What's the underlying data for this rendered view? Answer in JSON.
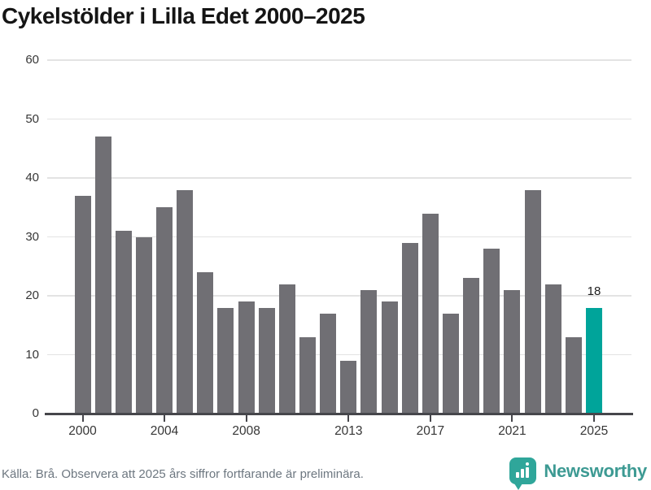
{
  "title": "Cykelstölder i Lilla Edet 2000–2025",
  "source_note": "Källa: Brå. Observera att 2025 års siffror fortfarande är preliminära.",
  "branding": {
    "name": "Newsworthy",
    "icon": "bar-chart-speech-bubble-icon"
  },
  "colors": {
    "bar": "#706f74",
    "highlight": "#00a49a",
    "grid": "#e3e3e3",
    "axis": "#46464b",
    "text": "#363636",
    "muted": "#6d7780",
    "brand": "#3d9a93"
  },
  "chart_data": {
    "type": "bar",
    "title": "Cykelstölder i Lilla Edet 2000–2025",
    "categories": [
      "2000",
      "2001",
      "2002",
      "2003",
      "2004",
      "2005",
      "2006",
      "2007",
      "2008",
      "2009",
      "2010",
      "2011",
      "2012",
      "2013",
      "2014",
      "2015",
      "2016",
      "2017",
      "2018",
      "2019",
      "2020",
      "2021",
      "2022",
      "2023",
      "2024",
      "2025"
    ],
    "values": [
      37,
      47,
      31,
      30,
      35,
      38,
      24,
      18,
      19,
      18,
      22,
      13,
      17,
      9,
      21,
      19,
      29,
      34,
      17,
      23,
      28,
      21,
      38,
      22,
      13,
      18
    ],
    "highlight_index": 25,
    "annotations": [
      {
        "x": "2025",
        "value": 18,
        "text": "18"
      }
    ],
    "x_tick_labels": [
      "2000",
      "2004",
      "2008",
      "2013",
      "2017",
      "2021",
      "2025"
    ],
    "y_ticks": [
      0,
      10,
      20,
      30,
      40,
      50,
      60
    ],
    "ylim": [
      0,
      60
    ],
    "xlabel": "",
    "ylabel": "",
    "grid": "horizontal",
    "legend": "none"
  }
}
